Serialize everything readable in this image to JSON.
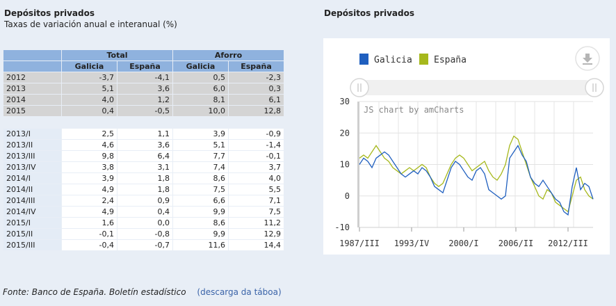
{
  "left": {
    "title": "Depósitos privados",
    "subtitle": "Taxas de variación anual e interanual (%)"
  },
  "table": {
    "group_headers": [
      "Total",
      "Aforro"
    ],
    "sub_headers": [
      "Galicia",
      "España",
      "Galicia",
      "España"
    ],
    "annual_rows": [
      {
        "label": "2012",
        "values": [
          "-3,7",
          "-4,1",
          "0,5",
          "-2,3"
        ]
      },
      {
        "label": "2013",
        "values": [
          "5,1",
          "3,6",
          "6,0",
          "0,3"
        ]
      },
      {
        "label": "2014",
        "values": [
          "4,0",
          "1,2",
          "8,1",
          "6,1"
        ]
      },
      {
        "label": "2015",
        "values": [
          "0,4",
          "-0,5",
          "10,0",
          "12,8"
        ]
      }
    ],
    "quarter_rows": [
      {
        "label": "2013/I",
        "values": [
          "2,5",
          "1,1",
          "3,9",
          "-0,9"
        ]
      },
      {
        "label": "2013/II",
        "values": [
          "4,6",
          "3,6",
          "5,1",
          "-1,4"
        ]
      },
      {
        "label": "2013/III",
        "values": [
          "9,8",
          "6,4",
          "7,7",
          "-0,1"
        ]
      },
      {
        "label": "2013/IV",
        "values": [
          "3,8",
          "3,1",
          "7,4",
          "3,7"
        ]
      },
      {
        "label": "2014/I",
        "values": [
          "3,9",
          "1,8",
          "8,6",
          "4,0"
        ]
      },
      {
        "label": "2014/II",
        "values": [
          "4,9",
          "1,8",
          "7,5",
          "5,5"
        ]
      },
      {
        "label": "2014/III",
        "values": [
          "2,4",
          "0,9",
          "6,6",
          "7,1"
        ]
      },
      {
        "label": "2014/IV",
        "values": [
          "4,9",
          "0,4",
          "9,9",
          "7,5"
        ]
      },
      {
        "label": "2015/I",
        "values": [
          "1,6",
          "0,0",
          "8,6",
          "11,2"
        ]
      },
      {
        "label": "2015/II",
        "values": [
          "-0,1",
          "-0,8",
          "9,9",
          "12,9"
        ]
      },
      {
        "label": "2015/III",
        "values": [
          "-0,4",
          "-0,7",
          "11,6",
          "14,4"
        ]
      }
    ]
  },
  "footer": {
    "source": "Fonte: Banco de España. Boletín estadístico",
    "download_label": "(descarga da táboa)"
  },
  "chart_data": {
    "type": "line",
    "title": "Depósitos privados",
    "watermark": "JS chart by amCharts",
    "xlabel": "",
    "ylabel": "",
    "ylim": [
      -10,
      30
    ],
    "y_ticks": [
      -10,
      0,
      10,
      20,
      30
    ],
    "x_tick_labels": [
      "1987/III",
      "1993/IV",
      "2000/I",
      "2006/II",
      "2012/III"
    ],
    "x_tick_index": [
      0,
      25,
      50,
      75,
      100
    ],
    "x_range": [
      0,
      112
    ],
    "legend_position": "top-left",
    "series": [
      {
        "name": "Galicia",
        "color": "#1f5fbf",
        "x": [
          0,
          2,
          4,
          6,
          8,
          10,
          12,
          14,
          16,
          18,
          20,
          22,
          24,
          26,
          28,
          30,
          32,
          34,
          36,
          38,
          40,
          42,
          44,
          46,
          48,
          50,
          52,
          54,
          56,
          58,
          60,
          62,
          64,
          66,
          68,
          70,
          72,
          74,
          76,
          78,
          80,
          82,
          84,
          86,
          88,
          90,
          92,
          94,
          96,
          98,
          100,
          102,
          104,
          106,
          108,
          110,
          112
        ],
        "values": [
          10,
          12,
          11,
          9,
          12,
          13,
          14,
          13,
          11,
          9,
          7,
          6,
          7,
          8,
          7,
          9,
          8,
          6,
          3,
          2,
          1,
          5,
          9,
          11,
          10,
          8,
          6,
          5,
          8,
          9,
          7,
          2,
          1,
          0,
          -1,
          0,
          12,
          14,
          16,
          13,
          11,
          6,
          4,
          3,
          5,
          3,
          1,
          -1,
          -2,
          -5,
          -6,
          3,
          9,
          2,
          4,
          3,
          -1
        ]
      },
      {
        "name": "España",
        "color": "#a6b81c",
        "x": [
          0,
          2,
          4,
          6,
          8,
          10,
          12,
          14,
          16,
          18,
          20,
          22,
          24,
          26,
          28,
          30,
          32,
          34,
          36,
          38,
          40,
          42,
          44,
          46,
          48,
          50,
          52,
          54,
          56,
          58,
          60,
          62,
          64,
          66,
          68,
          70,
          72,
          74,
          76,
          78,
          80,
          82,
          84,
          86,
          88,
          90,
          92,
          94,
          96,
          98,
          100,
          102,
          104,
          106,
          108,
          110,
          112
        ],
        "values": [
          12,
          13,
          12,
          14,
          16,
          14,
          12,
          11,
          9,
          8,
          7,
          8,
          9,
          8,
          9,
          10,
          9,
          6,
          4,
          3,
          4,
          7,
          10,
          12,
          13,
          12,
          10,
          8,
          9,
          10,
          11,
          8,
          6,
          5,
          7,
          10,
          16,
          19,
          18,
          14,
          10,
          6,
          3,
          0,
          -1,
          2,
          1,
          -2,
          -3,
          -4,
          -5,
          0,
          5,
          6,
          2,
          0,
          -1
        ]
      }
    ]
  }
}
